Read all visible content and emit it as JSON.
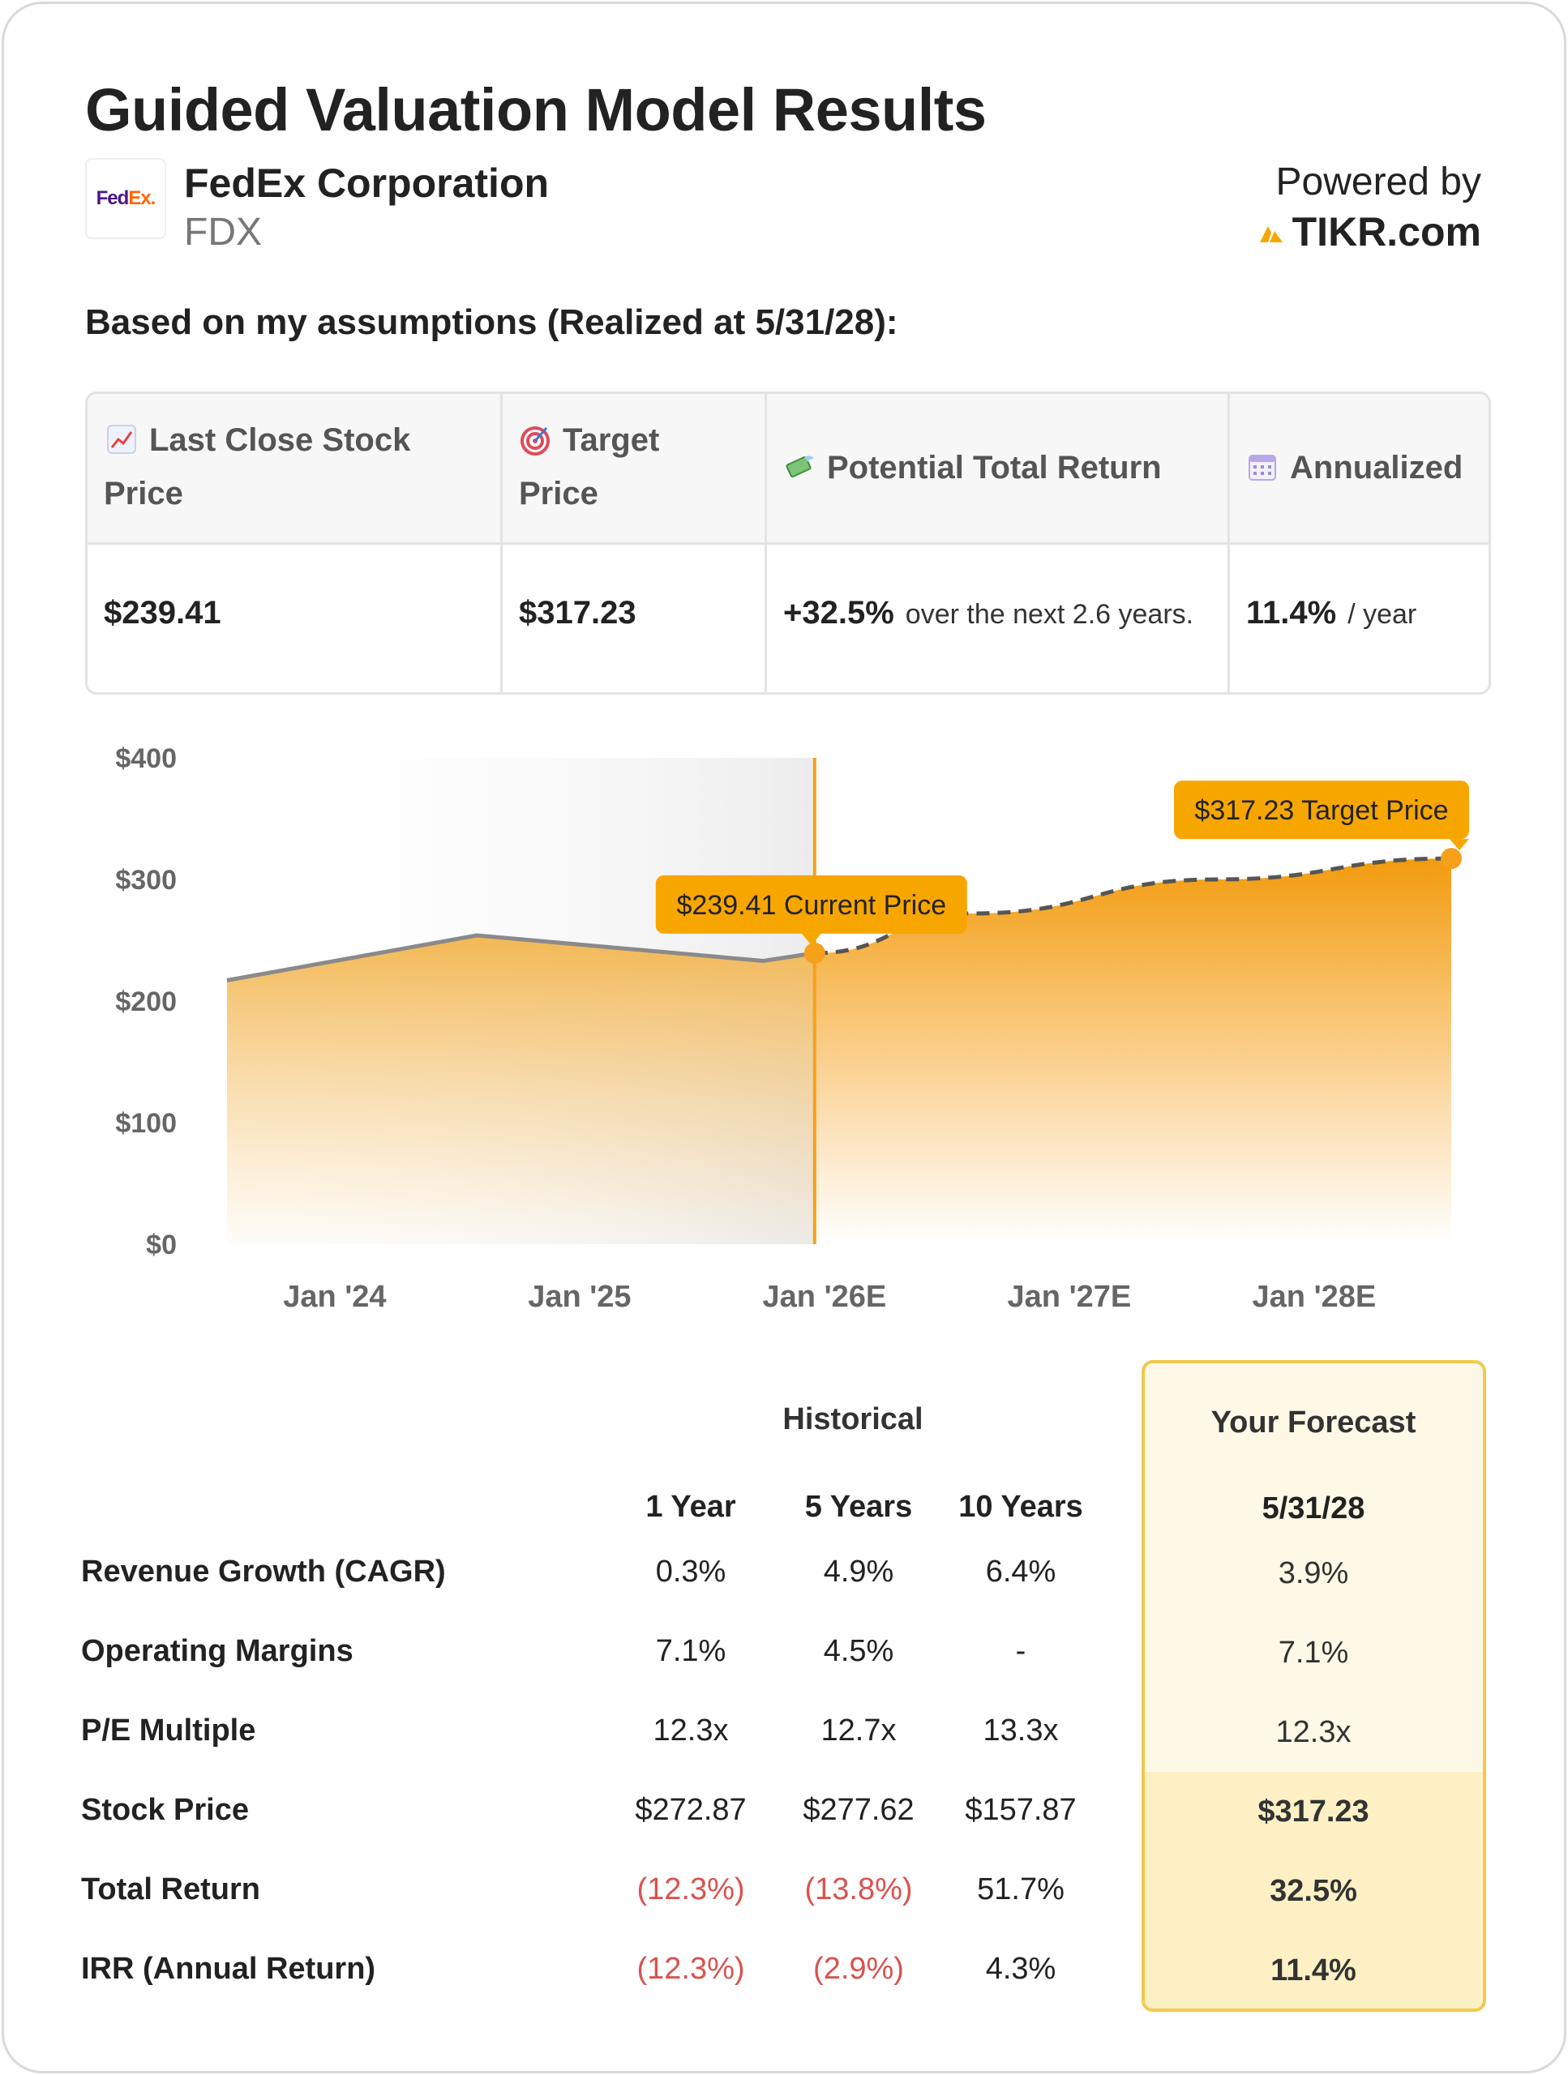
{
  "title": "Guided Valuation Model Results",
  "company": {
    "name": "FedEx Corporation",
    "ticker": "FDX",
    "logo_text_fe": "Fed",
    "logo_text_ex": "Ex",
    "logo_dot": "."
  },
  "powered": {
    "label": "Powered by",
    "brand": "TIKR.com",
    "brand_color": "#f7a600"
  },
  "assumptions_heading": "Based on my assumptions (Realized at 5/31/28):",
  "summary": {
    "headers": {
      "last_close_line1": "Last Close Stock",
      "last_close_line2": "Price",
      "target_line1": "Target",
      "target_line2": "Price",
      "potential": "Potential Total Return",
      "annualized": "Annualized"
    },
    "values": {
      "last_close": "$239.41",
      "target": "$317.23",
      "potential": "+32.5%",
      "potential_note": "over the next 2.6 years.",
      "annualized": "11.4%",
      "annualized_note": "/ year"
    },
    "icons": [
      "chart-increasing-icon",
      "target-icon",
      "money-with-wings-icon",
      "calendar-icon"
    ]
  },
  "chart_data": {
    "type": "area",
    "y_ticks": [
      "$400",
      "$300",
      "$200",
      "$100",
      "$0"
    ],
    "ylim": [
      0,
      400
    ],
    "x_tick_labels": [
      "Jan '24",
      "Jan '25",
      "Jan '26E",
      "Jan '27E",
      "Jan '28E"
    ],
    "x_tick_positions": [
      2024.0,
      2025.0,
      2026.0,
      2027.0,
      2028.0
    ],
    "xlim": [
      2023.56,
      2028.56
    ],
    "historical": {
      "x": [
        2023.56,
        2024.58,
        2025.75,
        2025.96
      ],
      "y": [
        217,
        254,
        233,
        239.41
      ]
    },
    "forecast": {
      "x": [
        2025.96,
        2026.6,
        2027.6,
        2028.56
      ],
      "y": [
        239.41,
        272,
        300,
        317.23
      ]
    },
    "current": {
      "x": 2025.96,
      "y": 239.41,
      "label": "$239.41 Current Price"
    },
    "target": {
      "x": 2028.56,
      "y": 317.23,
      "label": "$317.23 Target Price"
    },
    "accent": "#f7a01a"
  },
  "metrics": {
    "historical_title": "Historical",
    "forecast_title": "Your Forecast",
    "columns": [
      "1 Year",
      "5 Years",
      "10 Years"
    ],
    "forecast_date": "5/31/28",
    "rows": [
      {
        "label": "Revenue Growth (CAGR)",
        "values": [
          "0.3%",
          "4.9%",
          "6.4%"
        ],
        "forecast": "3.9%",
        "neg": [
          false,
          false,
          false
        ]
      },
      {
        "label": "Operating Margins",
        "values": [
          "7.1%",
          "4.5%",
          "-"
        ],
        "forecast": "7.1%",
        "neg": [
          false,
          false,
          false
        ]
      },
      {
        "label": "P/E Multiple",
        "values": [
          "12.3x",
          "12.7x",
          "13.3x"
        ],
        "forecast": "12.3x",
        "neg": [
          false,
          false,
          false
        ]
      },
      {
        "label": "Stock Price",
        "values": [
          "$272.87",
          "$277.62",
          "$157.87"
        ],
        "forecast": "$317.23",
        "neg": [
          false,
          false,
          false
        ]
      },
      {
        "label": "Total Return",
        "values": [
          "(12.3%)",
          "(13.8%)",
          "51.7%"
        ],
        "forecast": "32.5%",
        "neg": [
          true,
          true,
          false
        ]
      },
      {
        "label": "IRR (Annual Return)",
        "values": [
          "(12.3%)",
          "(2.9%)",
          "4.3%"
        ],
        "forecast": "11.4%",
        "neg": [
          true,
          true,
          false
        ]
      }
    ]
  }
}
